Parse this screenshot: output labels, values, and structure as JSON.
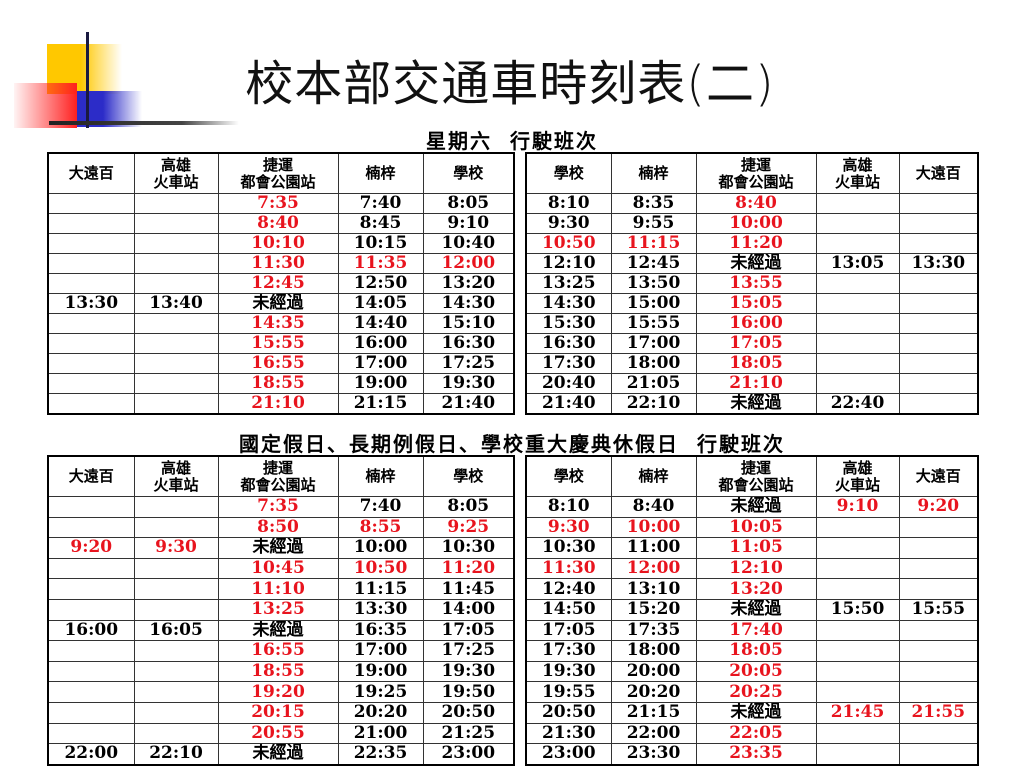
{
  "title": "校本部交通車時刻表(二)",
  "colors": {
    "red_time": "#e8141e",
    "text": "#000000"
  },
  "saturday": {
    "heading": "星期六  行駛班次",
    "outbound": {
      "headers": [
        "大遠百",
        "高雄\n火車站",
        "捷運\n都會公園站",
        "楠梓",
        "學校"
      ],
      "rows": [
        {
          "cells": [
            "",
            "",
            "7:35",
            "7:40",
            "8:05"
          ],
          "red": [
            2
          ]
        },
        {
          "cells": [
            "",
            "",
            "8:40",
            "8:45",
            "9:10"
          ],
          "red": [
            2
          ]
        },
        {
          "cells": [
            "",
            "",
            "10:10",
            "10:15",
            "10:40"
          ],
          "red": [
            2
          ]
        },
        {
          "cells": [
            "",
            "",
            "11:30",
            "11:35",
            "12:00"
          ],
          "red": [
            2,
            3,
            4
          ]
        },
        {
          "cells": [
            "",
            "",
            "12:45",
            "12:50",
            "13:20"
          ],
          "red": [
            2
          ]
        },
        {
          "cells": [
            "13:30",
            "13:40",
            "未經過",
            "14:05",
            "14:30"
          ],
          "red": []
        },
        {
          "cells": [
            "",
            "",
            "14:35",
            "14:40",
            "15:10"
          ],
          "red": [
            2
          ]
        },
        {
          "cells": [
            "",
            "",
            "15:55",
            "16:00",
            "16:30"
          ],
          "red": [
            2
          ]
        },
        {
          "cells": [
            "",
            "",
            "16:55",
            "17:00",
            "17:25"
          ],
          "red": [
            2
          ]
        },
        {
          "cells": [
            "",
            "",
            "18:55",
            "19:00",
            "19:30"
          ],
          "red": [
            2
          ]
        },
        {
          "cells": [
            "",
            "",
            "21:10",
            "21:15",
            "21:40"
          ],
          "red": [
            2
          ]
        }
      ]
    },
    "return": {
      "headers": [
        "學校",
        "楠梓",
        "捷運\n都會公園站",
        "高雄\n火車站",
        "大遠百"
      ],
      "rows": [
        {
          "cells": [
            "8:10",
            "8:35",
            "8:40",
            "",
            ""
          ],
          "red": [
            2
          ]
        },
        {
          "cells": [
            "9:30",
            "9:55",
            "10:00",
            "",
            ""
          ],
          "red": [
            2
          ]
        },
        {
          "cells": [
            "10:50",
            "11:15",
            "11:20",
            "",
            ""
          ],
          "red": [
            0,
            1,
            2
          ]
        },
        {
          "cells": [
            "12:10",
            "12:45",
            "未經過",
            "13:05",
            "13:30"
          ],
          "red": []
        },
        {
          "cells": [
            "13:25",
            "13:50",
            "13:55",
            "",
            ""
          ],
          "red": [
            2
          ]
        },
        {
          "cells": [
            "14:30",
            "15:00",
            "15:05",
            "",
            ""
          ],
          "red": [
            2
          ]
        },
        {
          "cells": [
            "15:30",
            "15:55",
            "16:00",
            "",
            ""
          ],
          "red": [
            2
          ]
        },
        {
          "cells": [
            "16:30",
            "17:00",
            "17:05",
            "",
            ""
          ],
          "red": [
            2
          ]
        },
        {
          "cells": [
            "17:30",
            "18:00",
            "18:05",
            "",
            ""
          ],
          "red": [
            2
          ]
        },
        {
          "cells": [
            "20:40",
            "21:05",
            "21:10",
            "",
            ""
          ],
          "red": [
            2
          ]
        },
        {
          "cells": [
            "21:40",
            "22:10",
            "未經過",
            "22:40",
            ""
          ],
          "red": []
        }
      ]
    }
  },
  "holiday": {
    "heading": "國定假日、長期例假日、學校重大慶典休假日  行駛班次",
    "outbound": {
      "headers": [
        "大遠百",
        "高雄\n火車站",
        "捷運\n都會公園站",
        "楠梓",
        "學校"
      ],
      "rows": [
        {
          "cells": [
            "",
            "",
            "7:35",
            "7:40",
            "8:05"
          ],
          "red": [
            2
          ]
        },
        {
          "cells": [
            "",
            "",
            "8:50",
            "8:55",
            "9:25"
          ],
          "red": [
            2,
            3,
            4
          ]
        },
        {
          "cells": [
            "9:20",
            "9:30",
            "未經過",
            "10:00",
            "10:30"
          ],
          "red": [
            0,
            1
          ]
        },
        {
          "cells": [
            "",
            "",
            "10:45",
            "10:50",
            "11:20"
          ],
          "red": [
            2,
            3,
            4
          ]
        },
        {
          "cells": [
            "",
            "",
            "11:10",
            "11:15",
            "11:45"
          ],
          "red": [
            2
          ]
        },
        {
          "cells": [
            "",
            "",
            "13:25",
            "13:30",
            "14:00"
          ],
          "red": [
            2
          ]
        },
        {
          "cells": [
            "16:00",
            "16:05",
            "未經過",
            "16:35",
            "17:05"
          ],
          "red": []
        },
        {
          "cells": [
            "",
            "",
            "16:55",
            "17:00",
            "17:25"
          ],
          "red": [
            2
          ]
        },
        {
          "cells": [
            "",
            "",
            "18:55",
            "19:00",
            "19:30"
          ],
          "red": [
            2
          ]
        },
        {
          "cells": [
            "",
            "",
            "19:20",
            "19:25",
            "19:50"
          ],
          "red": [
            2
          ]
        },
        {
          "cells": [
            "",
            "",
            "20:15",
            "20:20",
            "20:50"
          ],
          "red": [
            2
          ]
        },
        {
          "cells": [
            "",
            "",
            "20:55",
            "21:00",
            "21:25"
          ],
          "red": [
            2
          ]
        },
        {
          "cells": [
            "22:00",
            "22:10",
            "未經過",
            "22:35",
            "23:00"
          ],
          "red": []
        }
      ]
    },
    "return": {
      "headers": [
        "學校",
        "楠梓",
        "捷運\n都會公園站",
        "高雄\n火車站",
        "大遠百"
      ],
      "rows": [
        {
          "cells": [
            "8:10",
            "8:40",
            "未經過",
            "9:10",
            "9:20"
          ],
          "red": [
            3,
            4
          ]
        },
        {
          "cells": [
            "9:30",
            "10:00",
            "10:05",
            "",
            ""
          ],
          "red": [
            0,
            1,
            2
          ]
        },
        {
          "cells": [
            "10:30",
            "11:00",
            "11:05",
            "",
            ""
          ],
          "red": [
            2
          ]
        },
        {
          "cells": [
            "11:30",
            "12:00",
            "12:10",
            "",
            ""
          ],
          "red": [
            0,
            1,
            2
          ]
        },
        {
          "cells": [
            "12:40",
            "13:10",
            "13:20",
            "",
            ""
          ],
          "red": [
            2
          ]
        },
        {
          "cells": [
            "14:50",
            "15:20",
            "未經過",
            "15:50",
            "15:55"
          ],
          "red": []
        },
        {
          "cells": [
            "17:05",
            "17:35",
            "17:40",
            "",
            ""
          ],
          "red": [
            2
          ]
        },
        {
          "cells": [
            "17:30",
            "18:00",
            "18:05",
            "",
            ""
          ],
          "red": [
            2
          ]
        },
        {
          "cells": [
            "19:30",
            "20:00",
            "20:05",
            "",
            ""
          ],
          "red": [
            2
          ]
        },
        {
          "cells": [
            "19:55",
            "20:20",
            "20:25",
            "",
            ""
          ],
          "red": [
            2
          ]
        },
        {
          "cells": [
            "20:50",
            "21:15",
            "未經過",
            "21:45",
            "21:55"
          ],
          "red": [
            3,
            4
          ]
        },
        {
          "cells": [
            "21:30",
            "22:00",
            "22:05",
            "",
            ""
          ],
          "red": [
            2
          ]
        },
        {
          "cells": [
            "23:00",
            "23:30",
            "23:35",
            "",
            ""
          ],
          "red": [
            2
          ]
        }
      ]
    }
  }
}
